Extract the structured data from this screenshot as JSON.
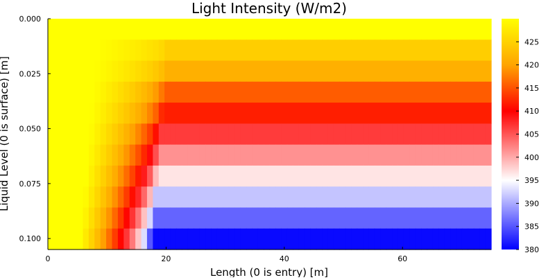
{
  "chart_data": {
    "type": "heatmap",
    "title": "Light Intensity (W/m2)",
    "xlabel": "Length (0 is entry) [m]",
    "ylabel": "Liquid Level (0 is surface) [m]",
    "x_range": [
      0,
      75
    ],
    "y_range": [
      0,
      0.105
    ],
    "y_reversed": true,
    "x_ticks": [
      0,
      20,
      40,
      60
    ],
    "y_ticks": [
      0.0,
      0.025,
      0.05,
      0.075,
      0.1
    ],
    "y_tick_labels": [
      "0.000",
      "0.025",
      "0.050",
      "0.075",
      "0.100"
    ],
    "colorbar": {
      "min": 380,
      "max": 430,
      "ticks": [
        380,
        385,
        390,
        395,
        400,
        405,
        410,
        415,
        420,
        425
      ],
      "colors": [
        "#0000ff",
        "#ffffff",
        "#ff0000",
        "#ffa500",
        "#ffff00"
      ],
      "stops": [
        0,
        0.3,
        0.6,
        0.8,
        1.0
      ]
    },
    "layer_depths": [
      0.0,
      0.01,
      0.02,
      0.03,
      0.04,
      0.05,
      0.06,
      0.07,
      0.08,
      0.09,
      0.1
    ],
    "layer_values_right": [
      430,
      424.6,
      421.2,
      415.6,
      411.8,
      406.5,
      401.5,
      396.6,
      391.5,
      385.9,
      380.5
    ],
    "inlet_value": 430,
    "transition_x_top": 20.5,
    "transition_x_bottom": 17.5,
    "transition_width": 12,
    "grid": false,
    "legend": "colorbar-right"
  }
}
